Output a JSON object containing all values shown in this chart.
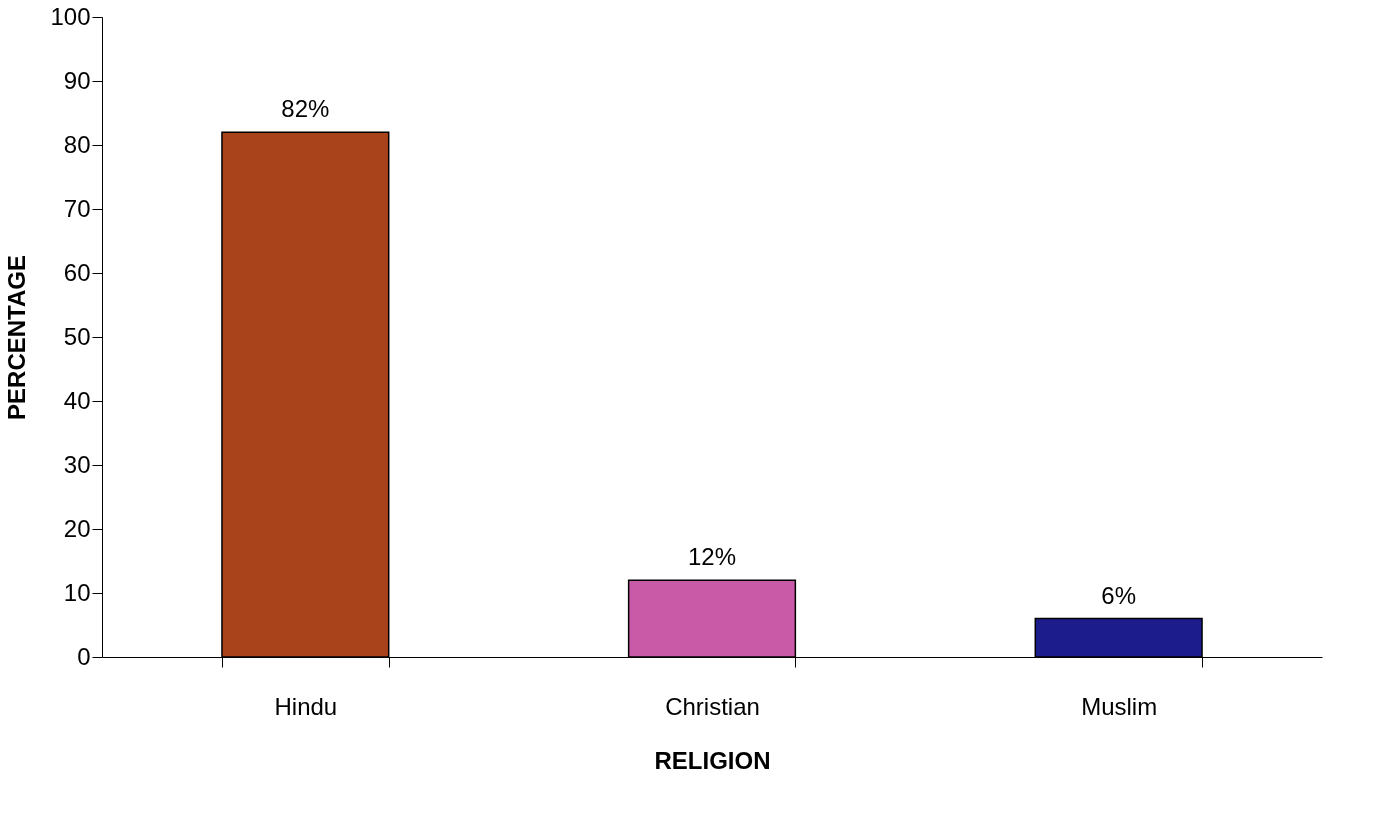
{
  "chart_data": {
    "type": "bar",
    "xlabel": "RELIGION",
    "ylabel": "PERCENTAGE",
    "categories": [
      "Hindu",
      "Christian",
      "Muslim"
    ],
    "values": [
      82,
      12,
      6
    ],
    "colors": [
      "#a8431c",
      "#c85aa8",
      "#1c1c8c"
    ],
    "value_labels": [
      "82%",
      "12%",
      "6%"
    ],
    "ylim": [
      0,
      100
    ],
    "yticks": [
      0,
      10,
      20,
      30,
      40,
      50,
      60,
      70,
      80,
      90,
      100
    ],
    "grid": false
  }
}
